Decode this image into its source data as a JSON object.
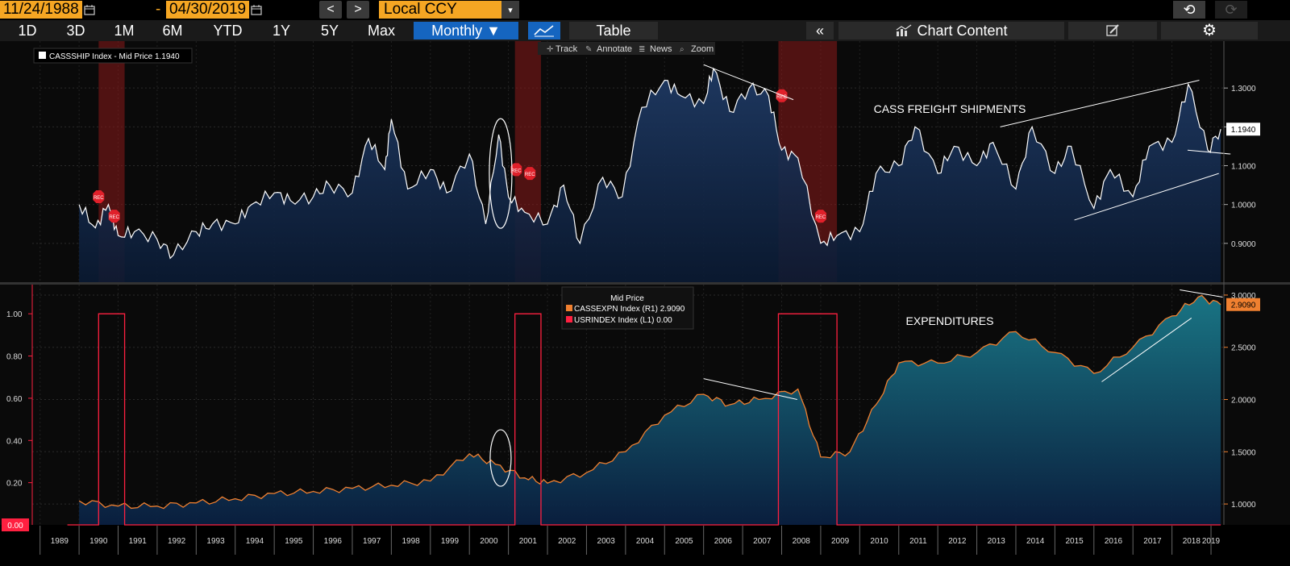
{
  "toolbar": {
    "start_date": "11/24/1988",
    "dash": "-",
    "end_date": "04/30/2019",
    "prev_symbol": "<",
    "next_symbol": ">",
    "currency": "Local CCY",
    "currency_caret": "▾",
    "undo_symbol": "⟲",
    "redo_symbol": "⟳"
  },
  "ranges": {
    "r1": "1D",
    "r2": "3D",
    "r3": "1M",
    "r4": "6M",
    "r5": "YTD",
    "r6": "1Y",
    "r7": "5Y",
    "r8": "Max",
    "periodicity": "Monthly ▼",
    "table": "Table",
    "collapse": "«",
    "chart_content": "Chart Content"
  },
  "tools": {
    "track": "Track",
    "annotate": "Annotate",
    "news": "News",
    "zoom": "Zoom"
  },
  "top_panel": {
    "legend": "CASSSHIP Index - Mid Price 1.1940",
    "annotation": "CASS FREIGHT SHIPMENTS",
    "last_value": "1.1940",
    "y_ticks": [
      "1.3000",
      "1.2000",
      "1.1000",
      "1.0000",
      "0.9000"
    ],
    "rec_label": "REC"
  },
  "bottom_panel": {
    "legend_title": "Mid Price",
    "legend_r1": "CASSEXPN Index  (R1) 2.9090",
    "legend_l1": "USRINDEX Index  (L1) 0.00",
    "annotation": "EXPENDITURES",
    "last_value": "2.9090",
    "zero_value": "0.00",
    "left_ticks": [
      "1.00",
      "0.80",
      "0.60",
      "0.40",
      "0.20"
    ],
    "right_ticks": [
      "3.0000",
      "2.5000",
      "2.0000",
      "1.5000",
      "1.0000"
    ]
  },
  "x_axis": {
    "years": [
      "1989",
      "1990",
      "1991",
      "1992",
      "1993",
      "1994",
      "1995",
      "1996",
      "1997",
      "1998",
      "1999",
      "2000",
      "2001",
      "2002",
      "2003",
      "2004",
      "2005",
      "2006",
      "2007",
      "2008",
      "2009",
      "2010",
      "2011",
      "2012",
      "2013",
      "2014",
      "2015",
      "2016",
      "2017",
      "2018",
      "2019"
    ]
  },
  "colors": {
    "accent": "#f5a623",
    "selected": "#1565c0",
    "recession": "#8b1a1a",
    "ship_line": "#ffffff",
    "exp_line": "#f08030",
    "rec_line": "#ff2040"
  },
  "chart_data": [
    {
      "type": "area",
      "series": [
        {
          "name": "CASSSHIP Index",
          "values": [
            {
              "x": "1990-01",
              "y": 1.0
            },
            {
              "x": "1990-06",
              "y": 0.94
            },
            {
              "x": "1990-10",
              "y": 1.0
            },
            {
              "x": "1991-01",
              "y": 0.92
            },
            {
              "x": "1991-06",
              "y": 0.93
            },
            {
              "x": "1992-01",
              "y": 0.91
            },
            {
              "x": "1992-06",
              "y": 0.87
            },
            {
              "x": "1993-01",
              "y": 0.93
            },
            {
              "x": "1993-06",
              "y": 0.95
            },
            {
              "x": "1994-01",
              "y": 0.95
            },
            {
              "x": "1994-06",
              "y": 1.0
            },
            {
              "x": "1995-01",
              "y": 1.03
            },
            {
              "x": "1995-06",
              "y": 1.01
            },
            {
              "x": "1996-01",
              "y": 1.02
            },
            {
              "x": "1996-06",
              "y": 1.05
            },
            {
              "x": "1997-01",
              "y": 1.03
            },
            {
              "x": "1997-06",
              "y": 1.17
            },
            {
              "x": "1997-11",
              "y": 1.09
            },
            {
              "x": "1998-01",
              "y": 1.22
            },
            {
              "x": "1998-06",
              "y": 1.04
            },
            {
              "x": "1999-01",
              "y": 1.09
            },
            {
              "x": "1999-06",
              "y": 1.03
            },
            {
              "x": "2000-01",
              "y": 1.13
            },
            {
              "x": "2000-06",
              "y": 0.95
            },
            {
              "x": "2000-10",
              "y": 1.18
            },
            {
              "x": "2001-01",
              "y": 1.02
            },
            {
              "x": "2001-06",
              "y": 0.98
            },
            {
              "x": "2002-01",
              "y": 0.95
            },
            {
              "x": "2002-06",
              "y": 1.05
            },
            {
              "x": "2002-11",
              "y": 0.9
            },
            {
              "x": "2003-06",
              "y": 1.07
            },
            {
              "x": "2003-12",
              "y": 1.02
            },
            {
              "x": "2004-06",
              "y": 1.25
            },
            {
              "x": "2005-01",
              "y": 1.32
            },
            {
              "x": "2005-06",
              "y": 1.28
            },
            {
              "x": "2006-01",
              "y": 1.26
            },
            {
              "x": "2006-04",
              "y": 1.35
            },
            {
              "x": "2006-09",
              "y": 1.24
            },
            {
              "x": "2007-03",
              "y": 1.3
            },
            {
              "x": "2007-09",
              "y": 1.28
            },
            {
              "x": "2008-01",
              "y": 1.14
            },
            {
              "x": "2008-06",
              "y": 1.12
            },
            {
              "x": "2009-01",
              "y": 0.9
            },
            {
              "x": "2009-06",
              "y": 0.92
            },
            {
              "x": "2010-01",
              "y": 0.93
            },
            {
              "x": "2010-06",
              "y": 1.08
            },
            {
              "x": "2011-01",
              "y": 1.1
            },
            {
              "x": "2011-06",
              "y": 1.2
            },
            {
              "x": "2012-01",
              "y": 1.08
            },
            {
              "x": "2012-06",
              "y": 1.15
            },
            {
              "x": "2013-01",
              "y": 1.1
            },
            {
              "x": "2013-06",
              "y": 1.16
            },
            {
              "x": "2014-01",
              "y": 1.04
            },
            {
              "x": "2014-06",
              "y": 1.2
            },
            {
              "x": "2015-01",
              "y": 1.08
            },
            {
              "x": "2015-06",
              "y": 1.15
            },
            {
              "x": "2016-01",
              "y": 0.99
            },
            {
              "x": "2016-06",
              "y": 1.09
            },
            {
              "x": "2017-01",
              "y": 1.02
            },
            {
              "x": "2017-06",
              "y": 1.15
            },
            {
              "x": "2018-01",
              "y": 1.16
            },
            {
              "x": "2018-06",
              "y": 1.31
            },
            {
              "x": "2018-12",
              "y": 1.14
            },
            {
              "x": "2019-04",
              "y": 1.194
            }
          ]
        }
      ],
      "ylim": [
        0.8,
        1.4
      ]
    },
    {
      "type": "line",
      "series": [
        {
          "name": "CASSEXPN Index",
          "axis": "R1",
          "values": [
            {
              "x": "1990-01",
              "y": 1.03
            },
            {
              "x": "1991-01",
              "y": 0.98
            },
            {
              "x": "1992-01",
              "y": 0.98
            },
            {
              "x": "1993-01",
              "y": 1.01
            },
            {
              "x": "1994-01",
              "y": 1.05
            },
            {
              "x": "1995-01",
              "y": 1.1
            },
            {
              "x": "1996-01",
              "y": 1.12
            },
            {
              "x": "1997-01",
              "y": 1.15
            },
            {
              "x": "1998-01",
              "y": 1.18
            },
            {
              "x": "1999-01",
              "y": 1.22
            },
            {
              "x": "2000-01",
              "y": 1.48
            },
            {
              "x": "2000-09",
              "y": 1.38
            },
            {
              "x": "2001-06",
              "y": 1.25
            },
            {
              "x": "2002-01",
              "y": 1.2
            },
            {
              "x": "2003-01",
              "y": 1.3
            },
            {
              "x": "2004-01",
              "y": 1.5
            },
            {
              "x": "2005-01",
              "y": 1.85
            },
            {
              "x": "2006-01",
              "y": 2.05
            },
            {
              "x": "2006-09",
              "y": 1.95
            },
            {
              "x": "2007-06",
              "y": 2.0
            },
            {
              "x": "2008-06",
              "y": 2.1
            },
            {
              "x": "2009-01",
              "y": 1.45
            },
            {
              "x": "2009-10",
              "y": 1.5
            },
            {
              "x": "2010-06",
              "y": 1.95
            },
            {
              "x": "2011-01",
              "y": 2.35
            },
            {
              "x": "2012-01",
              "y": 2.35
            },
            {
              "x": "2013-01",
              "y": 2.45
            },
            {
              "x": "2014-01",
              "y": 2.65
            },
            {
              "x": "2015-01",
              "y": 2.45
            },
            {
              "x": "2016-01",
              "y": 2.25
            },
            {
              "x": "2017-01",
              "y": 2.5
            },
            {
              "x": "2018-01",
              "y": 2.8
            },
            {
              "x": "2018-09",
              "y": 2.98
            },
            {
              "x": "2019-04",
              "y": 2.909
            }
          ]
        },
        {
          "name": "USRINDEX Index",
          "axis": "L1",
          "values": [
            {
              "x": "1990-07",
              "y": 1
            },
            {
              "x": "1991-03",
              "y": 0
            },
            {
              "x": "2001-03",
              "y": 1
            },
            {
              "x": "2001-11",
              "y": 0
            },
            {
              "x": "2007-12",
              "y": 1
            },
            {
              "x": "2009-06",
              "y": 0
            }
          ]
        }
      ],
      "ylim_left": [
        0,
        1.1
      ],
      "ylim_right": [
        0.8,
        3.1
      ]
    }
  ]
}
